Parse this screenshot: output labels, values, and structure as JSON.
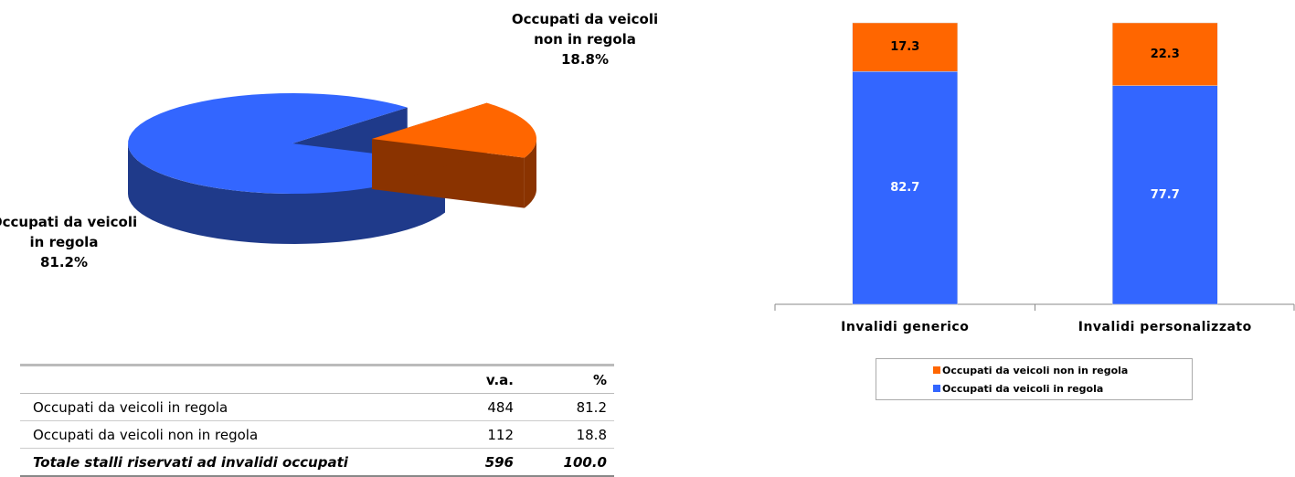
{
  "chart_data": [
    {
      "type": "pie3d",
      "categories": [
        "Occupati da veicoli in regola",
        "Occupati da veicoli non in regola"
      ],
      "values": [
        81.2,
        18.8
      ],
      "value_labels": [
        "81.2%",
        "18.8%"
      ],
      "colors": [
        "#3366ff",
        "#ff6600"
      ],
      "side_colors": [
        "#1f3a8a",
        "#8a3300"
      ]
    },
    {
      "type": "stacked_bar",
      "categories": [
        "Invalidi generico",
        "Invalidi personalizzato"
      ],
      "series": [
        {
          "name": "Occupati da veicoli in regola",
          "color": "#3366ff",
          "values": [
            82.7,
            77.7
          ]
        },
        {
          "name": "Occupati da veicoli non in regola",
          "color": "#ff6600",
          "values": [
            17.3,
            22.3
          ]
        }
      ],
      "ylim": [
        0,
        100
      ],
      "legend": "bottom"
    }
  ],
  "table": {
    "header": [
      "v.a.",
      "%"
    ],
    "rows": [
      [
        "Occupati da veicoli in regola",
        "484",
        "81.2"
      ],
      [
        "Occupati da veicoli non in regola",
        "112",
        "18.8"
      ]
    ],
    "total": [
      "Totale stalli riservati ad invalidi  occupati",
      "596",
      "100.0"
    ]
  }
}
